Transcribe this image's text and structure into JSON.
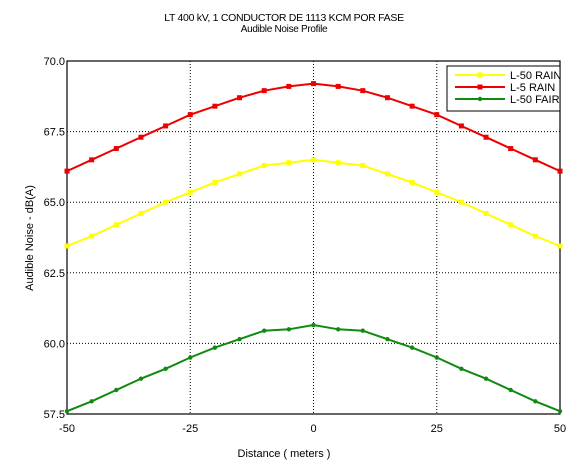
{
  "chart_data": {
    "type": "line",
    "title": "LT 400 kV, 1 CONDUCTOR DE 1113 KCM   POR FASE",
    "subtitle": "Audible Noise Profile",
    "xlabel": "Distance ( meters )",
    "ylabel": "Audible Noise - dB(A)",
    "xlim": [
      -50,
      50
    ],
    "ylim": [
      57.5,
      70.0
    ],
    "xticks": [
      "-50",
      "-25",
      "0",
      "25",
      "50"
    ],
    "yticks": [
      "57.5",
      "60.0",
      "62.5",
      "65.0",
      "67.5",
      "70.0"
    ],
    "grid": true,
    "legend_position": "top-right",
    "x": [
      -50,
      -45,
      -40,
      -35,
      -30,
      -25,
      -20,
      -15,
      -10,
      -5,
      0,
      5,
      10,
      15,
      20,
      25,
      30,
      35,
      40,
      45,
      50
    ],
    "series": [
      {
        "name": "L-50 RAIN",
        "color": "#ffff00",
        "values": [
          63.45,
          63.8,
          64.2,
          64.6,
          65.0,
          65.35,
          65.7,
          66.0,
          66.3,
          66.4,
          66.5,
          66.4,
          66.3,
          66.0,
          65.7,
          65.35,
          65.0,
          64.6,
          64.2,
          63.8,
          63.45
        ]
      },
      {
        "name": "L-5 RAIN",
        "color": "#ff0000",
        "values": [
          66.1,
          66.5,
          66.9,
          67.3,
          67.7,
          68.1,
          68.4,
          68.7,
          68.95,
          69.1,
          69.2,
          69.1,
          68.95,
          68.7,
          68.4,
          68.1,
          67.7,
          67.3,
          66.9,
          66.5,
          66.1
        ]
      },
      {
        "name": "L-50 FAIR",
        "color": "#008000",
        "values": [
          57.6,
          57.95,
          58.35,
          58.75,
          59.1,
          59.5,
          59.85,
          60.15,
          60.45,
          60.5,
          60.65,
          60.5,
          60.45,
          60.15,
          59.85,
          59.5,
          59.1,
          58.75,
          58.35,
          57.95,
          57.6
        ]
      }
    ]
  }
}
